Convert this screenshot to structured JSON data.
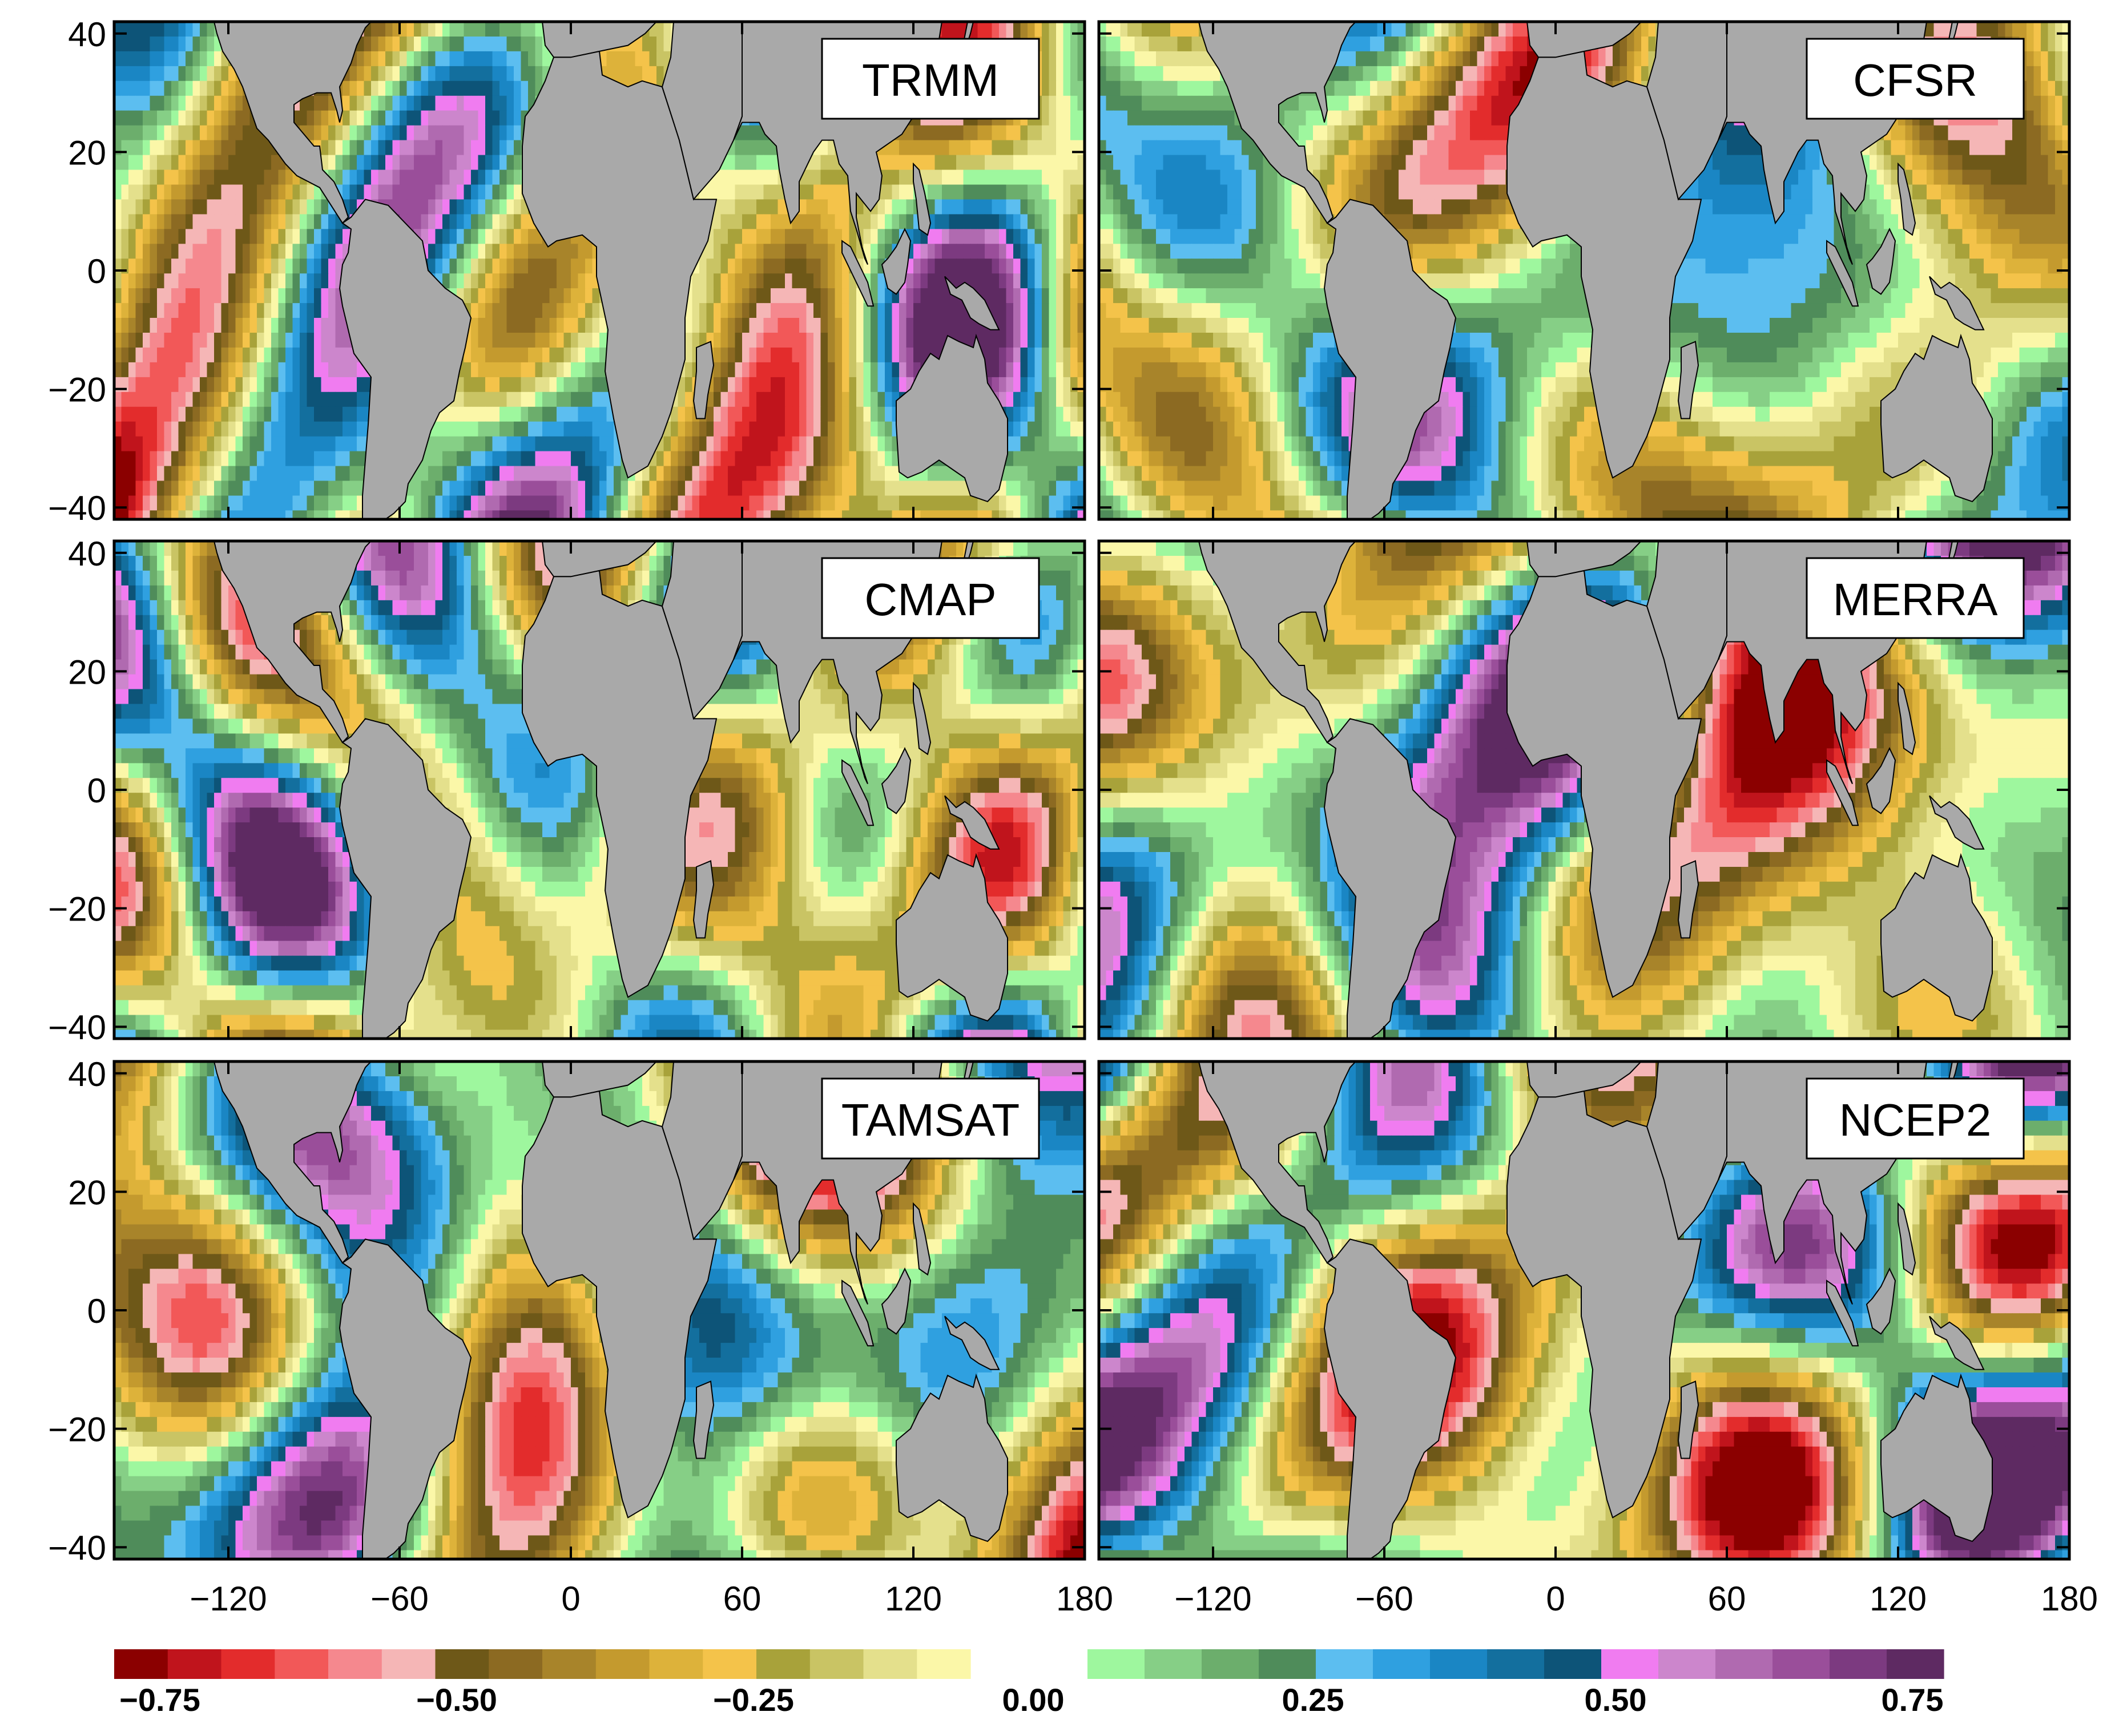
{
  "panels": [
    {
      "label": "TRMM"
    },
    {
      "label": "CFSR"
    },
    {
      "label": "CMAP"
    },
    {
      "label": "MERRA"
    },
    {
      "label": "TAMSAT"
    },
    {
      "label": "NCEP2"
    }
  ],
  "axes": {
    "y_ticks": [
      40,
      20,
      0,
      -20,
      -40
    ],
    "x_ticks": [
      -120,
      -60,
      0,
      60,
      120,
      180
    ],
    "lon_range": [
      -160,
      180
    ],
    "lat_range": [
      -42,
      42
    ],
    "y_tick_labels": [
      "40",
      "20",
      "0",
      "−20",
      "−40"
    ],
    "x_tick_labels": [
      "−120",
      "−60",
      "0",
      "60",
      "120",
      "180"
    ]
  },
  "colorbar": {
    "colors": [
      "#8b0000",
      "#c0141c",
      "#e32c2c",
      "#f25858",
      "#f5888e",
      "#f5b6b6",
      "#6e5818",
      "#8c6a22",
      "#a8842a",
      "#c49a2e",
      "#ddb23a",
      "#f4c34a",
      "#a8a23a",
      "#c9c464",
      "#e4e08c",
      "#fbf7a8",
      "#9ef79e",
      "#86cf86",
      "#6cae6c",
      "#4f8c5a",
      "#5cbef0",
      "#2fa0e0",
      "#1a86c4",
      "#136f9e",
      "#0d5478",
      "#f07cf0",
      "#cc86cc",
      "#b06ab0",
      "#9a4e9a",
      "#7c3a80",
      "#5e2a62"
    ],
    "labels": [
      "−0.75",
      "−0.50",
      "−0.25",
      "0.00",
      "0.25",
      "0.50",
      "0.75"
    ]
  },
  "colors": {
    "land": "#a9a9a9",
    "frame": "#000000"
  }
}
